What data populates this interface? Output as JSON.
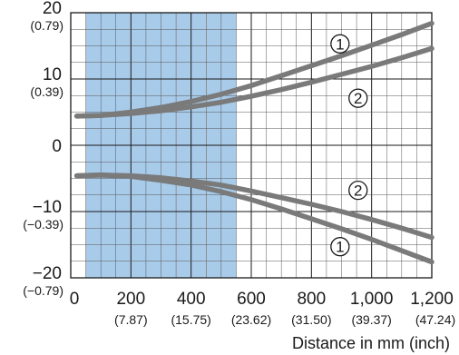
{
  "chart_data": {
    "type": "line",
    "title": "",
    "xlabel": "Distance in mm (inch)",
    "ylabel": "",
    "xlim": [
      0,
      1200
    ],
    "ylim": [
      -20,
      20
    ],
    "grid": true,
    "highlight_band": {
      "x": [
        50,
        550
      ],
      "color": "#a9cbea"
    },
    "x_ticks": [
      {
        "value": 0,
        "label": "0",
        "sub": ""
      },
      {
        "value": 200,
        "label": "200",
        "sub": "(7.87)"
      },
      {
        "value": 400,
        "label": "400",
        "sub": "(15.75)"
      },
      {
        "value": 600,
        "label": "600",
        "sub": "(23.62)"
      },
      {
        "value": 800,
        "label": "800",
        "sub": "(31.50)"
      },
      {
        "value": 1000,
        "label": "1,000",
        "sub": "(39.37)"
      },
      {
        "value": 1200,
        "label": "1,200",
        "sub": "(47.24)"
      }
    ],
    "y_ticks": [
      {
        "value": 20,
        "label": "20",
        "sub": "(0.79)"
      },
      {
        "value": 10,
        "label": "10",
        "sub": "(0.39)"
      },
      {
        "value": 0,
        "label": "0",
        "sub": ""
      },
      {
        "value": -10,
        "label": "−10",
        "sub": "(−0.39)"
      },
      {
        "value": -20,
        "label": "−20",
        "sub": "(−0.79)"
      }
    ],
    "line_color": "#7a7a7a",
    "series": [
      {
        "marker": "1",
        "side": "upper",
        "x": [
          20,
          100,
          200,
          300,
          400,
          500,
          600,
          700,
          800,
          900,
          1000,
          1100,
          1200
        ],
        "y": [
          4.4,
          4.5,
          5.0,
          5.7,
          6.6,
          7.7,
          9.0,
          10.5,
          12.0,
          13.5,
          15.1,
          16.7,
          18.4
        ]
      },
      {
        "marker": "2",
        "side": "upper",
        "x": [
          20,
          100,
          200,
          300,
          400,
          500,
          600,
          700,
          800,
          900,
          1000,
          1100,
          1200
        ],
        "y": [
          4.4,
          4.5,
          4.8,
          5.2,
          5.8,
          6.5,
          7.4,
          8.4,
          9.5,
          10.7,
          11.9,
          13.2,
          14.6
        ]
      },
      {
        "marker": "2",
        "side": "lower",
        "x": [
          20,
          100,
          200,
          300,
          400,
          500,
          600,
          700,
          800,
          900,
          1000,
          1100,
          1200
        ],
        "y": [
          -4.6,
          -4.5,
          -4.6,
          -4.9,
          -5.4,
          -6.0,
          -6.9,
          -7.9,
          -8.9,
          -10.0,
          -11.2,
          -12.5,
          -13.9
        ]
      },
      {
        "marker": "1",
        "side": "lower",
        "x": [
          20,
          100,
          200,
          300,
          400,
          500,
          600,
          700,
          800,
          900,
          1000,
          1100,
          1200
        ],
        "y": [
          -4.6,
          -4.5,
          -4.7,
          -5.3,
          -6.0,
          -7.0,
          -8.2,
          -9.6,
          -11.1,
          -12.6,
          -14.2,
          -15.9,
          -17.6
        ]
      }
    ],
    "markers": [
      {
        "text": "1",
        "x": 895,
        "y": 15.3
      },
      {
        "text": "2",
        "x": 955,
        "y": 7.1
      },
      {
        "text": "2",
        "x": 955,
        "y": -6.8
      },
      {
        "text": "1",
        "x": 895,
        "y": -15.3
      }
    ]
  }
}
